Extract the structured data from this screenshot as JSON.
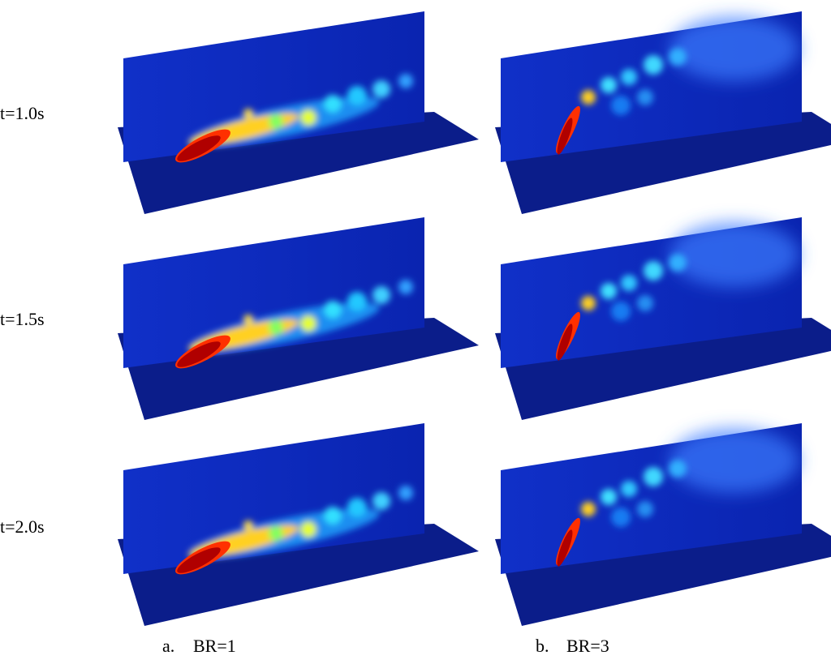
{
  "row_labels": [
    "t=1.0s",
    "t=1.5s",
    "t=2.0s"
  ],
  "captions": [
    {
      "label": "a.",
      "text": "BR=1"
    },
    {
      "label": "b.",
      "text": "BR=3"
    }
  ]
}
